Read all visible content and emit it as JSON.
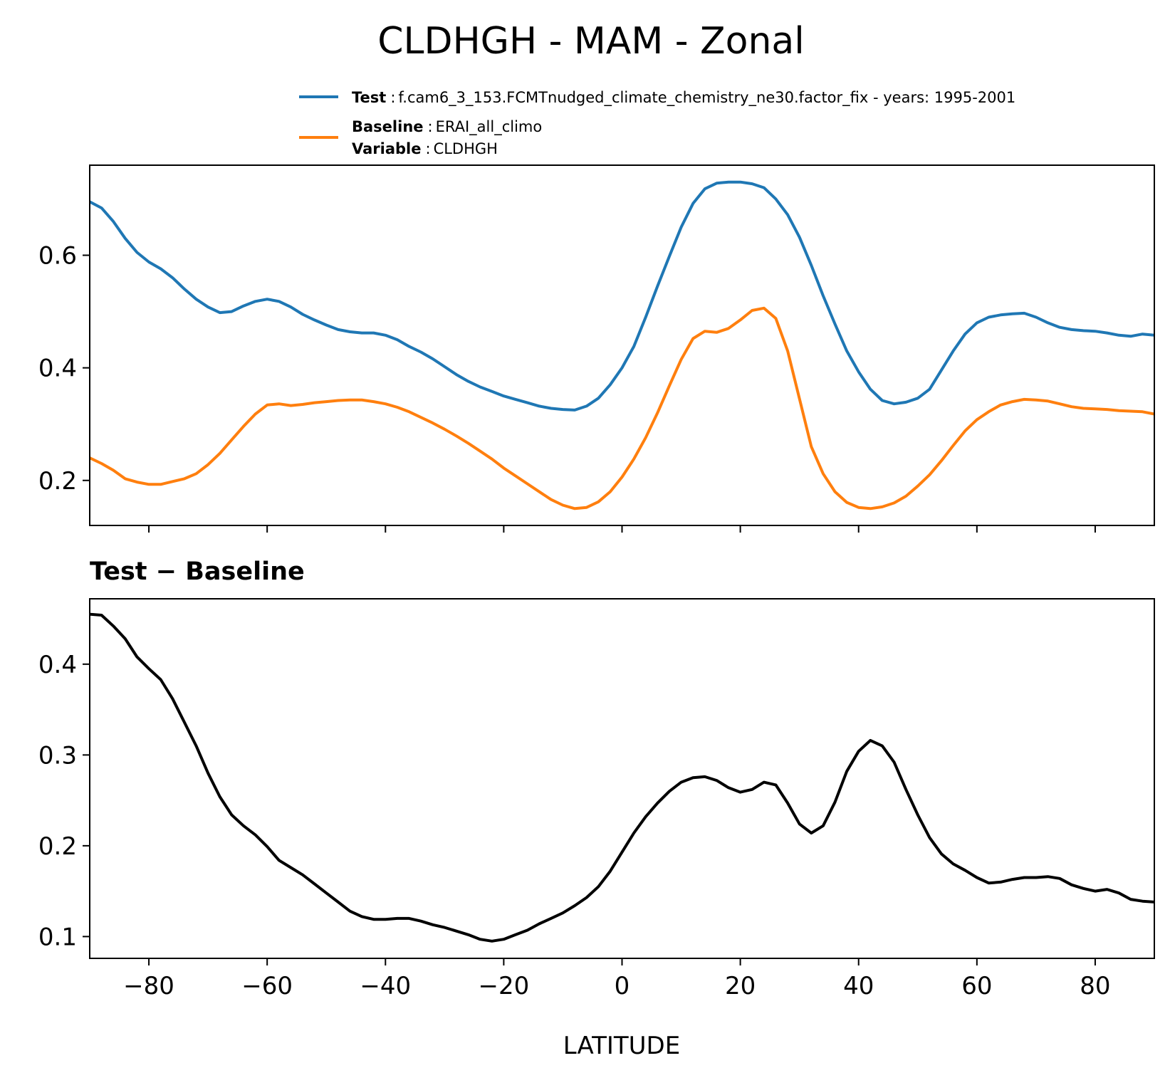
{
  "figure": {
    "title": "CLDHGH - MAM - Zonal",
    "legend": {
      "test_key": "Test",
      "test_value": "f.cam6_3_153.FCMTnudged_climate_chemistry_ne30.factor_fix - years: 1995-2001",
      "baseline_key": "Baseline",
      "baseline_value": "ERAI_all_climo",
      "variable_key": "Variable",
      "variable_value": "CLDHGH",
      "separator": ":"
    },
    "colors": {
      "test": "#1f77b4",
      "baseline": "#ff7f0e",
      "diff": "#000000"
    }
  },
  "chart_data": [
    {
      "type": "line",
      "title": "",
      "xlabel": "",
      "ylabel": "",
      "xlim": [
        -90,
        90
      ],
      "ylim": [
        0.12,
        0.76
      ],
      "yticks": [
        0.2,
        0.4,
        0.6
      ],
      "ytick_labels": [
        "0.2",
        "0.4",
        "0.6"
      ],
      "xticks": [
        -80,
        -60,
        -40,
        -20,
        0,
        20,
        40,
        60,
        80
      ],
      "grid": false,
      "legend_position": "top",
      "series": [
        {
          "name": "Test",
          "color": "#1f77b4",
          "x": [
            -90,
            -88,
            -86,
            -84,
            -82,
            -80,
            -78,
            -76,
            -74,
            -72,
            -70,
            -68,
            -66,
            -64,
            -62,
            -60,
            -58,
            -56,
            -54,
            -52,
            -50,
            -48,
            -46,
            -44,
            -42,
            -40,
            -38,
            -36,
            -34,
            -32,
            -30,
            -28,
            -26,
            -24,
            -22,
            -20,
            -18,
            -16,
            -14,
            -12,
            -10,
            -8,
            -6,
            -4,
            -2,
            0,
            2,
            4,
            6,
            8,
            10,
            12,
            14,
            16,
            18,
            20,
            22,
            24,
            26,
            28,
            30,
            32,
            34,
            36,
            38,
            40,
            42,
            44,
            46,
            48,
            50,
            52,
            54,
            56,
            58,
            60,
            62,
            64,
            66,
            68,
            70,
            72,
            74,
            76,
            78,
            80,
            82,
            84,
            86,
            88,
            90
          ],
          "values": [
            0.695,
            0.684,
            0.66,
            0.63,
            0.605,
            0.588,
            0.576,
            0.56,
            0.54,
            0.522,
            0.508,
            0.498,
            0.5,
            0.51,
            0.518,
            0.522,
            0.518,
            0.508,
            0.495,
            0.485,
            0.476,
            0.468,
            0.464,
            0.462,
            0.462,
            0.458,
            0.45,
            0.438,
            0.428,
            0.416,
            0.402,
            0.388,
            0.376,
            0.366,
            0.358,
            0.35,
            0.344,
            0.338,
            0.332,
            0.328,
            0.326,
            0.325,
            0.332,
            0.346,
            0.37,
            0.4,
            0.438,
            0.49,
            0.545,
            0.598,
            0.65,
            0.692,
            0.718,
            0.728,
            0.73,
            0.73,
            0.727,
            0.72,
            0.7,
            0.672,
            0.632,
            0.582,
            0.528,
            0.478,
            0.43,
            0.393,
            0.362,
            0.342,
            0.336,
            0.339,
            0.346,
            0.362,
            0.396,
            0.43,
            0.46,
            0.48,
            0.49,
            0.494,
            0.496,
            0.497,
            0.49,
            0.48,
            0.472,
            0.468,
            0.466,
            0.465,
            0.462,
            0.458,
            0.456,
            0.46,
            0.458
          ]
        },
        {
          "name": "Baseline",
          "color": "#ff7f0e",
          "x": [
            -90,
            -88,
            -86,
            -84,
            -82,
            -80,
            -78,
            -76,
            -74,
            -72,
            -70,
            -68,
            -66,
            -64,
            -62,
            -60,
            -58,
            -56,
            -54,
            -52,
            -50,
            -48,
            -46,
            -44,
            -42,
            -40,
            -38,
            -36,
            -34,
            -32,
            -30,
            -28,
            -26,
            -24,
            -22,
            -20,
            -18,
            -16,
            -14,
            -12,
            -10,
            -8,
            -6,
            -4,
            -2,
            0,
            2,
            4,
            6,
            8,
            10,
            12,
            14,
            16,
            18,
            20,
            22,
            24,
            26,
            28,
            30,
            32,
            34,
            36,
            38,
            40,
            42,
            44,
            46,
            48,
            50,
            52,
            54,
            56,
            58,
            60,
            62,
            64,
            66,
            68,
            70,
            72,
            74,
            76,
            78,
            80,
            82,
            84,
            86,
            88,
            90
          ],
          "values": [
            0.24,
            0.23,
            0.218,
            0.203,
            0.197,
            0.193,
            0.193,
            0.198,
            0.203,
            0.212,
            0.228,
            0.248,
            0.272,
            0.296,
            0.318,
            0.334,
            0.336,
            0.333,
            0.335,
            0.338,
            0.34,
            0.342,
            0.343,
            0.343,
            0.34,
            0.336,
            0.33,
            0.322,
            0.312,
            0.302,
            0.291,
            0.279,
            0.266,
            0.252,
            0.238,
            0.222,
            0.208,
            0.194,
            0.18,
            0.166,
            0.156,
            0.15,
            0.152,
            0.162,
            0.18,
            0.206,
            0.238,
            0.276,
            0.32,
            0.368,
            0.415,
            0.452,
            0.465,
            0.463,
            0.47,
            0.485,
            0.502,
            0.506,
            0.488,
            0.43,
            0.345,
            0.26,
            0.212,
            0.18,
            0.161,
            0.152,
            0.15,
            0.153,
            0.16,
            0.172,
            0.19,
            0.21,
            0.235,
            0.262,
            0.288,
            0.308,
            0.322,
            0.334,
            0.34,
            0.344,
            0.343,
            0.341,
            0.336,
            0.331,
            0.328,
            0.327,
            0.326,
            0.324,
            0.323,
            0.322,
            0.318
          ]
        }
      ]
    },
    {
      "type": "line",
      "title": "Test − Baseline",
      "xlabel": "LATITUDE",
      "ylabel": "",
      "xlim": [
        -90,
        90
      ],
      "ylim": [
        0.076,
        0.472
      ],
      "yticks": [
        0.1,
        0.2,
        0.3,
        0.4
      ],
      "ytick_labels": [
        "0.1",
        "0.2",
        "0.3",
        "0.4"
      ],
      "xticks": [
        -80,
        -60,
        -40,
        -20,
        0,
        20,
        40,
        60,
        80
      ],
      "xtick_labels": [
        "−80",
        "−60",
        "−40",
        "−20",
        "0",
        "20",
        "40",
        "60",
        "80"
      ],
      "grid": false,
      "series": [
        {
          "color": "#000000",
          "x": [
            -90,
            -88,
            -86,
            -84,
            -82,
            -80,
            -78,
            -76,
            -74,
            -72,
            -70,
            -68,
            -66,
            -64,
            -62,
            -60,
            -58,
            -56,
            -54,
            -52,
            -50,
            -48,
            -46,
            -44,
            -42,
            -40,
            -38,
            -36,
            -34,
            -32,
            -30,
            -28,
            -26,
            -24,
            -22,
            -20,
            -18,
            -16,
            -14,
            -12,
            -10,
            -8,
            -6,
            -4,
            -2,
            0,
            2,
            4,
            6,
            8,
            10,
            12,
            14,
            16,
            18,
            20,
            22,
            24,
            26,
            28,
            30,
            32,
            34,
            36,
            38,
            40,
            42,
            44,
            46,
            48,
            50,
            52,
            54,
            56,
            58,
            60,
            62,
            64,
            66,
            68,
            70,
            72,
            74,
            76,
            78,
            80,
            82,
            84,
            86,
            88,
            90
          ],
          "values": [
            0.455,
            0.454,
            0.442,
            0.428,
            0.408,
            0.395,
            0.383,
            0.362,
            0.336,
            0.31,
            0.28,
            0.254,
            0.234,
            0.222,
            0.212,
            0.199,
            0.184,
            0.176,
            0.168,
            0.158,
            0.148,
            0.138,
            0.128,
            0.122,
            0.119,
            0.119,
            0.12,
            0.12,
            0.117,
            0.113,
            0.11,
            0.106,
            0.102,
            0.097,
            0.095,
            0.097,
            0.102,
            0.107,
            0.114,
            0.12,
            0.126,
            0.134,
            0.143,
            0.155,
            0.172,
            0.193,
            0.214,
            0.232,
            0.247,
            0.26,
            0.27,
            0.275,
            0.276,
            0.272,
            0.264,
            0.259,
            0.262,
            0.27,
            0.267,
            0.247,
            0.224,
            0.214,
            0.222,
            0.248,
            0.282,
            0.304,
            0.316,
            0.31,
            0.292,
            0.262,
            0.234,
            0.209,
            0.191,
            0.18,
            0.173,
            0.165,
            0.159,
            0.16,
            0.163,
            0.165,
            0.165,
            0.166,
            0.164,
            0.157,
            0.153,
            0.15,
            0.152,
            0.148,
            0.141,
            0.139,
            0.138
          ]
        }
      ]
    }
  ]
}
